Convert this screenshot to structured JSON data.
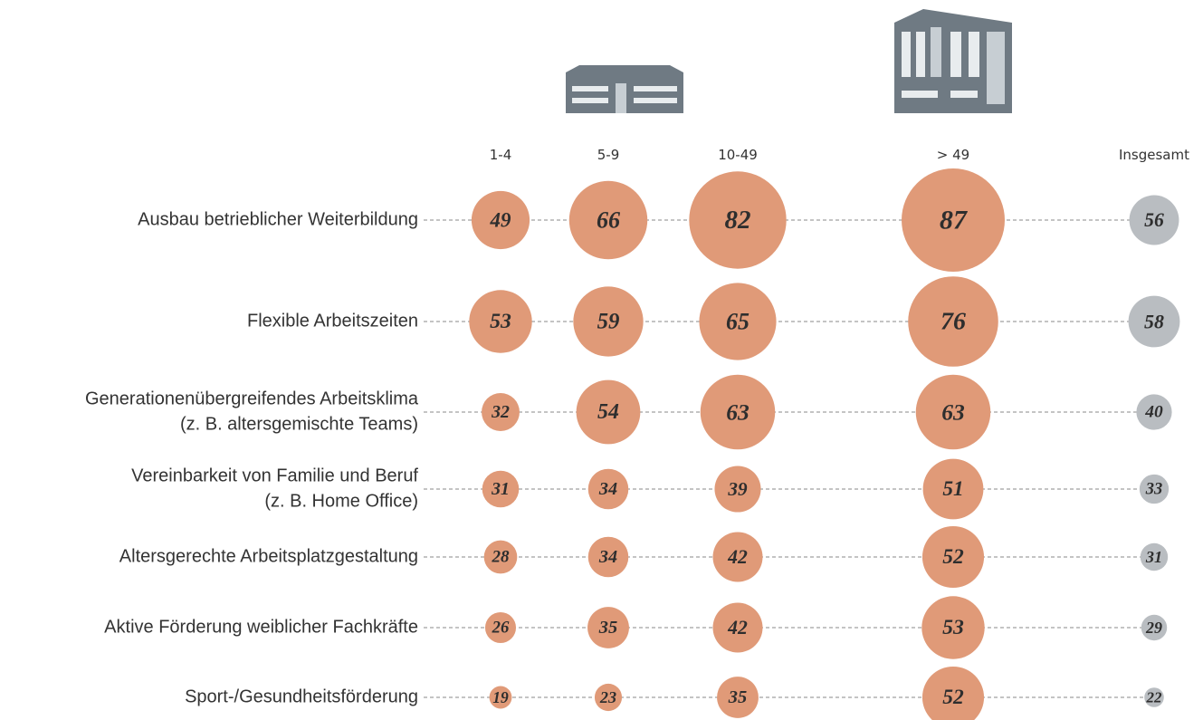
{
  "chart_data": {
    "type": "bubble-matrix",
    "categories": [
      [
        "Ausbau betrieblicher Weiterbildung"
      ],
      [
        "Flexible Arbeitszeiten"
      ],
      [
        "Generationenübergreifendes Arbeitsklima",
        "(z. B. altersgemischte Teams)"
      ],
      [
        "Vereinbarkeit von Familie und Beruf",
        "(z. B. Home Office)"
      ],
      [
        "Altersgerechte Arbeitsplatzgestaltung"
      ],
      [
        "Aktive Förderung weiblicher Fachkräfte"
      ],
      [
        "Sport-/Gesundheitsförderung"
      ]
    ],
    "series": [
      {
        "name": "1-4",
        "color": "#e09a78",
        "values": [
          49,
          53,
          32,
          31,
          28,
          26,
          19
        ]
      },
      {
        "name": "5-9",
        "color": "#e09a78",
        "values": [
          66,
          59,
          54,
          34,
          34,
          35,
          23
        ]
      },
      {
        "name": "10-49",
        "color": "#e09a78",
        "values": [
          82,
          65,
          63,
          39,
          42,
          42,
          35
        ]
      },
      {
        "name": "> 49",
        "color": "#e09a78",
        "values": [
          87,
          76,
          63,
          51,
          52,
          53,
          52
        ]
      },
      {
        "name": "Insgesamt",
        "color": "#b9bdc1",
        "values": [
          56,
          58,
          40,
          33,
          31,
          29,
          22
        ]
      }
    ]
  }
}
